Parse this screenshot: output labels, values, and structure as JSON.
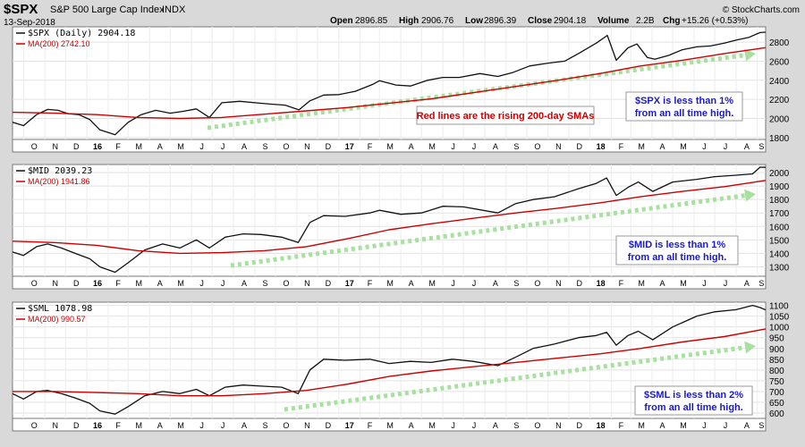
{
  "header": {
    "symbol": "$SPX",
    "name": "S&P 500 Large Cap Index",
    "exchange": "INDX",
    "date": "13-Sep-2018",
    "open_label": "Open",
    "open": "2896.85",
    "high_label": "High",
    "high": "2906.76",
    "low_label": "Low",
    "low": "2896.39",
    "close_label": "Close",
    "close": "2904.18",
    "volume_label": "Volume",
    "volume": "2.2B",
    "chg_label": "Chg",
    "chg": "+15.26 (+0.53%)",
    "brand": "© StockCharts.com"
  },
  "colors": {
    "price": "#111111",
    "ma": "#cc0000",
    "arrow": "#a8e0a0",
    "note_red": "#cc0000",
    "note_blue": "#1a1acc"
  },
  "x_axis_labels": [
    "O",
    "N",
    "D",
    "16",
    "F",
    "M",
    "A",
    "M",
    "J",
    "J",
    "A",
    "S",
    "O",
    "N",
    "D",
    "17",
    "F",
    "M",
    "A",
    "M",
    "J",
    "J",
    "A",
    "S",
    "O",
    "N",
    "D",
    "18",
    "F",
    "M",
    "A",
    "M",
    "J",
    "J",
    "A",
    "S"
  ],
  "chart_data": [
    {
      "type": "line",
      "panel": "spx",
      "legend": [
        "$SPX (Daily) 2904.18",
        "MA(200) 2742.10"
      ],
      "yticks": [
        1800,
        2000,
        2200,
        2400,
        2600,
        2800
      ],
      "ylim": [
        1780,
        2960
      ],
      "x_start": "2015-09-15",
      "x_end": "2018-09-13",
      "series": [
        {
          "name": "$SPX (Daily)",
          "x": [
            "2015-09-15",
            "2015-10-01",
            "2015-10-20",
            "2015-11-05",
            "2015-11-20",
            "2015-12-05",
            "2015-12-20",
            "2016-01-05",
            "2016-01-20",
            "2016-02-11",
            "2016-03-01",
            "2016-03-20",
            "2016-04-10",
            "2016-05-01",
            "2016-05-20",
            "2016-06-08",
            "2016-06-27",
            "2016-07-15",
            "2016-08-10",
            "2016-09-08",
            "2016-09-25",
            "2016-10-15",
            "2016-11-04",
            "2016-11-20",
            "2016-12-10",
            "2017-01-01",
            "2017-01-25",
            "2017-02-20",
            "2017-03-01",
            "2017-03-25",
            "2017-04-15",
            "2017-05-10",
            "2017-06-01",
            "2017-06-25",
            "2017-07-25",
            "2017-08-20",
            "2017-09-10",
            "2017-10-05",
            "2017-11-01",
            "2017-11-25",
            "2017-12-15",
            "2018-01-10",
            "2018-01-26",
            "2018-02-08",
            "2018-02-25",
            "2018-03-10",
            "2018-03-25",
            "2018-04-05",
            "2018-04-25",
            "2018-05-15",
            "2018-06-05",
            "2018-06-25",
            "2018-07-15",
            "2018-08-01",
            "2018-08-20",
            "2018-09-05",
            "2018-09-13"
          ],
          "y": [
            1960,
            1925,
            2040,
            2095,
            2085,
            2050,
            2040,
            1990,
            1880,
            1830,
            1960,
            2040,
            2085,
            2055,
            2075,
            2100,
            2010,
            2165,
            2180,
            2160,
            2150,
            2140,
            2090,
            2185,
            2245,
            2250,
            2285,
            2360,
            2395,
            2350,
            2340,
            2400,
            2430,
            2430,
            2470,
            2440,
            2480,
            2550,
            2580,
            2600,
            2680,
            2790,
            2870,
            2610,
            2740,
            2780,
            2640,
            2620,
            2660,
            2720,
            2750,
            2760,
            2790,
            2820,
            2850,
            2900,
            2904
          ]
        },
        {
          "name": "MA(200)",
          "x": [
            "2015-09-15",
            "2015-11-15",
            "2016-01-15",
            "2016-03-15",
            "2016-05-15",
            "2016-07-15",
            "2016-09-15",
            "2016-11-15",
            "2017-01-15",
            "2017-03-15",
            "2017-05-15",
            "2017-07-15",
            "2017-09-15",
            "2017-11-15",
            "2018-01-15",
            "2018-03-15",
            "2018-05-15",
            "2018-07-15",
            "2018-09-13"
          ],
          "y": [
            2065,
            2055,
            2040,
            2010,
            2000,
            2010,
            2045,
            2080,
            2115,
            2160,
            2205,
            2270,
            2335,
            2400,
            2470,
            2550,
            2610,
            2680,
            2742
          ]
        }
      ],
      "annotations": [
        {
          "text": "Red lines are the rising 200-day SMAs",
          "color": "red"
        },
        {
          "text": "$SPX is less than 1%",
          "line2": "from an all time high.",
          "color": "blue"
        }
      ]
    },
    {
      "type": "line",
      "panel": "mid",
      "legend": [
        "$MID 2039.23",
        "MA(200) 1941.86"
      ],
      "yticks": [
        1300,
        1400,
        1500,
        1600,
        1700,
        1800,
        1900,
        2000
      ],
      "ylim": [
        1230,
        2060
      ],
      "x_start": "2015-09-15",
      "x_end": "2018-09-13",
      "series": [
        {
          "name": "$MID",
          "x": [
            "2015-09-15",
            "2015-10-01",
            "2015-10-20",
            "2015-11-05",
            "2015-11-25",
            "2015-12-15",
            "2016-01-05",
            "2016-01-20",
            "2016-02-11",
            "2016-03-01",
            "2016-03-25",
            "2016-04-20",
            "2016-05-15",
            "2016-06-08",
            "2016-06-27",
            "2016-07-20",
            "2016-08-15",
            "2016-09-10",
            "2016-10-10",
            "2016-11-03",
            "2016-11-20",
            "2016-12-10",
            "2017-01-10",
            "2017-02-15",
            "2017-03-01",
            "2017-04-01",
            "2017-05-01",
            "2017-06-01",
            "2017-07-01",
            "2017-08-20",
            "2017-09-15",
            "2017-10-10",
            "2017-11-10",
            "2017-12-15",
            "2018-01-10",
            "2018-01-25",
            "2018-02-08",
            "2018-02-25",
            "2018-03-12",
            "2018-04-02",
            "2018-05-01",
            "2018-06-05",
            "2018-07-01",
            "2018-08-01",
            "2018-08-25",
            "2018-09-05",
            "2018-09-13"
          ],
          "y": [
            1410,
            1385,
            1450,
            1470,
            1440,
            1400,
            1360,
            1300,
            1260,
            1330,
            1425,
            1470,
            1440,
            1500,
            1440,
            1520,
            1545,
            1540,
            1520,
            1480,
            1630,
            1680,
            1675,
            1700,
            1720,
            1690,
            1700,
            1750,
            1745,
            1700,
            1770,
            1800,
            1820,
            1880,
            1920,
            1960,
            1830,
            1890,
            1930,
            1860,
            1930,
            1950,
            1970,
            1980,
            1990,
            2040,
            2039
          ]
        },
        {
          "name": "MA(200)",
          "x": [
            "2015-09-15",
            "2015-11-15",
            "2016-01-15",
            "2016-03-15",
            "2016-05-15",
            "2016-07-15",
            "2016-09-15",
            "2016-11-15",
            "2017-01-15",
            "2017-03-15",
            "2017-05-15",
            "2017-07-15",
            "2017-09-15",
            "2017-11-15",
            "2018-01-15",
            "2018-03-15",
            "2018-05-15",
            "2018-07-15",
            "2018-09-13"
          ],
          "y": [
            1490,
            1480,
            1460,
            1420,
            1400,
            1405,
            1420,
            1450,
            1510,
            1575,
            1620,
            1660,
            1700,
            1735,
            1775,
            1820,
            1860,
            1895,
            1942
          ]
        }
      ],
      "annotations": [
        {
          "text": "$MID is less than 1%",
          "line2": "from an all time high.",
          "color": "blue"
        }
      ]
    },
    {
      "type": "line",
      "panel": "sml",
      "legend": [
        "$SML 1078.98",
        "MA(200) 990.57"
      ],
      "yticks": [
        600,
        650,
        700,
        750,
        800,
        850,
        900,
        950,
        1000,
        1050,
        1100
      ],
      "ylim": [
        575,
        1115
      ],
      "x_start": "2015-09-15",
      "x_end": "2018-09-13",
      "series": [
        {
          "name": "$SML",
          "x": [
            "2015-09-15",
            "2015-10-01",
            "2015-10-20",
            "2015-11-05",
            "2015-11-25",
            "2015-12-15",
            "2016-01-05",
            "2016-01-20",
            "2016-02-11",
            "2016-03-01",
            "2016-03-25",
            "2016-04-20",
            "2016-05-15",
            "2016-06-08",
            "2016-06-27",
            "2016-07-20",
            "2016-08-15",
            "2016-09-10",
            "2016-10-10",
            "2016-11-03",
            "2016-11-20",
            "2016-12-10",
            "2017-01-10",
            "2017-02-15",
            "2017-03-15",
            "2017-04-15",
            "2017-05-15",
            "2017-06-15",
            "2017-07-15",
            "2017-08-20",
            "2017-09-15",
            "2017-10-10",
            "2017-11-10",
            "2017-12-15",
            "2018-01-10",
            "2018-01-25",
            "2018-02-08",
            "2018-02-25",
            "2018-03-12",
            "2018-04-02",
            "2018-05-01",
            "2018-06-05",
            "2018-07-01",
            "2018-08-01",
            "2018-08-25",
            "2018-09-05",
            "2018-09-13"
          ],
          "y": [
            690,
            665,
            700,
            705,
            690,
            670,
            645,
            610,
            595,
            630,
            680,
            700,
            690,
            710,
            680,
            720,
            730,
            725,
            720,
            690,
            800,
            850,
            845,
            850,
            830,
            840,
            835,
            850,
            840,
            820,
            860,
            900,
            920,
            950,
            960,
            975,
            915,
            960,
            980,
            940,
            1000,
            1050,
            1070,
            1080,
            1100,
            1090,
            1079
          ]
        },
        {
          "name": "MA(200)",
          "x": [
            "2015-09-15",
            "2015-11-15",
            "2016-01-15",
            "2016-03-15",
            "2016-05-15",
            "2016-07-15",
            "2016-09-15",
            "2016-11-15",
            "2017-01-15",
            "2017-03-15",
            "2017-05-15",
            "2017-07-15",
            "2017-09-15",
            "2017-11-15",
            "2018-01-15",
            "2018-03-15",
            "2018-05-15",
            "2018-07-15",
            "2018-09-13"
          ],
          "y": [
            700,
            700,
            695,
            690,
            680,
            680,
            690,
            705,
            735,
            770,
            795,
            815,
            835,
            855,
            875,
            900,
            930,
            955,
            991
          ]
        }
      ],
      "annotations": [
        {
          "text": "$SML is less than 2%",
          "line2": "from an all time high.",
          "color": "blue"
        }
      ]
    }
  ]
}
